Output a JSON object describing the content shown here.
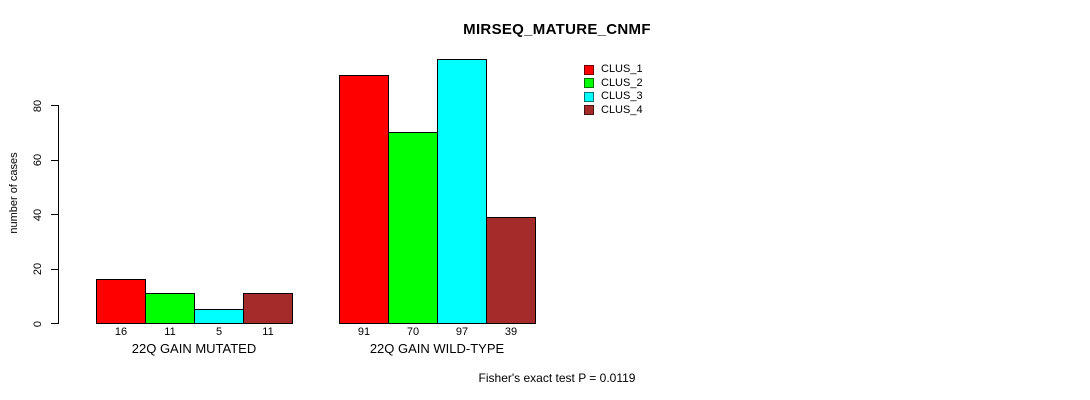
{
  "title": "MIRSEQ_MATURE_CNMF",
  "ylabel": "number of cases",
  "footnote": "Fisher's exact test P = 0.0119",
  "legend": {
    "items": [
      {
        "label": "CLUS_1",
        "color": "#FF0000"
      },
      {
        "label": "CLUS_2",
        "color": "#00FF00"
      },
      {
        "label": "CLUS_3",
        "color": "#00FFFF"
      },
      {
        "label": "CLUS_4",
        "color": "#A52A2A"
      }
    ]
  },
  "chart_data": {
    "type": "bar",
    "title": "MIRSEQ_MATURE_CNMF",
    "ylabel": "number of cases",
    "xlabel": "",
    "ylim": [
      0,
      100
    ],
    "yticks": [
      0,
      20,
      40,
      60,
      80
    ],
    "grid": false,
    "legend_position": "top-right",
    "categories": [
      "22Q GAIN MUTATED",
      "22Q GAIN WILD-TYPE"
    ],
    "series": [
      {
        "name": "CLUS_1",
        "color": "#FF0000",
        "values": [
          16,
          91
        ]
      },
      {
        "name": "CLUS_2",
        "color": "#00FF00",
        "values": [
          11,
          70
        ]
      },
      {
        "name": "CLUS_3",
        "color": "#00FFFF",
        "values": [
          5,
          97
        ]
      },
      {
        "name": "CLUS_4",
        "color": "#A52A2A",
        "values": [
          11,
          39
        ]
      }
    ],
    "bar_value_labels": [
      [
        16,
        11,
        5,
        11
      ],
      [
        91,
        70,
        97,
        39
      ]
    ],
    "annotation": "Fisher's exact test P = 0.0119"
  }
}
